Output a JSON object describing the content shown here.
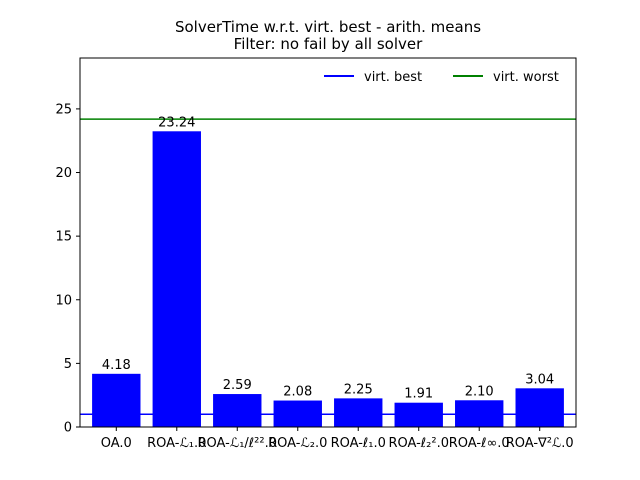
{
  "chart_data": {
    "type": "bar",
    "title": "SolverTime w.r.t. virt. best - arith. means",
    "subtitle": "Filter: no fail by all solver",
    "xlabel": "",
    "ylabel": "",
    "categories": [
      "OA.0",
      "ROA-ℒ₁.0",
      "ROA-ℒ₁/ℓ²².0",
      "ROA-ℒ₂.0",
      "ROA-ℓ₁.0",
      "ROA-ℓ₂².0",
      "ROA-ℓ∞.0",
      "ROA-∇²ℒ.0"
    ],
    "values": [
      4.18,
      23.24,
      2.59,
      2.08,
      2.25,
      1.91,
      2.1,
      3.04
    ],
    "value_labels": [
      "4.18",
      "23.24",
      "2.59",
      "2.08",
      "2.25",
      "1.91",
      "2.10",
      "3.04"
    ],
    "ylim": [
      0,
      29
    ],
    "yticks": [
      0,
      5,
      10,
      15,
      20,
      25
    ],
    "bar_color": "#0000ff",
    "grid": false,
    "legend_position": "top-right",
    "reference_lines": [
      {
        "name": "virt. best",
        "value": 1.0,
        "color": "#0000ff"
      },
      {
        "name": "virt. worst",
        "value": 24.2,
        "color": "#008000"
      }
    ]
  }
}
